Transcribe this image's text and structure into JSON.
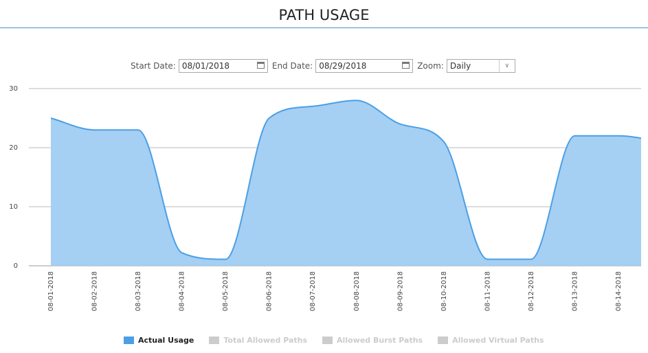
{
  "header": {
    "title": "PATH USAGE"
  },
  "controls": {
    "start_label": "Start Date:",
    "start_value": "08/01/2018",
    "end_label": "End Date:",
    "end_value": "08/29/2018",
    "zoom_label": "Zoom:",
    "zoom_value": "Daily"
  },
  "chart_data": {
    "type": "area",
    "categories": [
      "08-01-2018",
      "08-02-2018",
      "08-03-2018",
      "08-04-2018",
      "08-05-2018",
      "08-06-2018",
      "08-07-2018",
      "08-08-2018",
      "08-09-2018",
      "08-10-2018",
      "08-11-2018",
      "08-12-2018",
      "08-13-2018",
      "08-14-2018",
      null
    ],
    "series": [
      {
        "name": "Actual Usage",
        "color": "#4a9fe6",
        "fill": "#a5cff3",
        "values": [
          25,
          23,
          23,
          2.2,
          1.1,
          25,
          27,
          28,
          24,
          21,
          1.1,
          1.1,
          22,
          22,
          21
        ]
      }
    ],
    "hidden_series": [
      {
        "name": "Total Allowed Paths",
        "color": "#cccccc"
      },
      {
        "name": "Allowed Burst Paths",
        "color": "#cccccc"
      },
      {
        "name": "Allowed Virtual Paths",
        "color": "#cccccc"
      }
    ],
    "ylim": [
      0,
      30
    ],
    "yticks": [
      0,
      10,
      20,
      30
    ],
    "grid": true
  }
}
